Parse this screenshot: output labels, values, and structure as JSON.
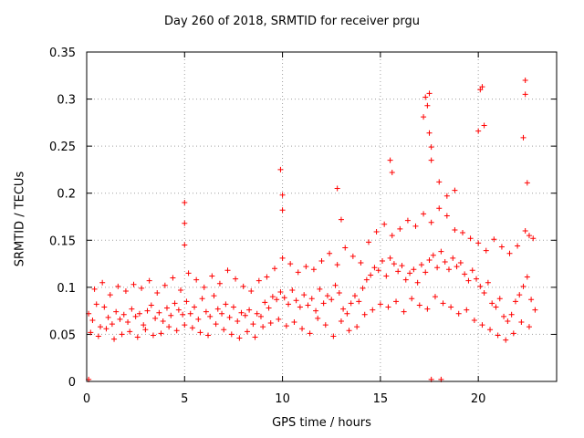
{
  "chart_data": {
    "type": "scatter",
    "title": "Day 260 of 2018, SRMTID for receiver prgu",
    "xlabel": "GPS time / hours",
    "ylabel": "SRMTID / TECUs",
    "xlim": [
      0,
      24
    ],
    "ylim": [
      0,
      0.35
    ],
    "xticks": [
      0,
      5,
      10,
      15,
      20
    ],
    "yticks": [
      0,
      0.05,
      0.1,
      0.15,
      0.2,
      0.25,
      0.3,
      0.35
    ],
    "ytick_labels": [
      "0",
      "0.05",
      "0.1",
      "0.15",
      "0.2",
      "0.25",
      "0.3",
      "0.35"
    ],
    "grid": true,
    "marker": "+",
    "color": "#ff0000",
    "series": [
      {
        "name": "SRMTID",
        "x": [
          0.1,
          0.3,
          0.5,
          0.7,
          0.9,
          1.1,
          1.3,
          1.5,
          1.7,
          1.9,
          2.1,
          2.3,
          2.5,
          2.7,
          2.9,
          3.1,
          3.3,
          3.5,
          3.7,
          3.9,
          4.1,
          4.3,
          4.5,
          4.7,
          4.9,
          5.1,
          5.3,
          5.5,
          5.7,
          5.9,
          6.1,
          6.3,
          6.5,
          6.7,
          6.9,
          7.1,
          7.3,
          7.5,
          7.7,
          7.9,
          8.1,
          8.3,
          8.5,
          8.7,
          8.9,
          9.1,
          9.3,
          9.5,
          9.7,
          9.9,
          10.1,
          10.3,
          10.5,
          10.7,
          10.9,
          11.1,
          11.3,
          11.5,
          11.7,
          11.9,
          12.1,
          12.3,
          12.5,
          12.7,
          12.9,
          13.1,
          13.3,
          13.5,
          13.7,
          13.9,
          14.1,
          14.3,
          14.5,
          14.7,
          14.9,
          15.1,
          15.3,
          15.5,
          15.7,
          15.9,
          16.1,
          16.3,
          16.5,
          16.7,
          16.9,
          17.1,
          17.3,
          17.5,
          17.7,
          17.9,
          18.1,
          18.3,
          18.5,
          18.7,
          18.9,
          19.1,
          19.3,
          19.5,
          19.7,
          19.9,
          20.1,
          20.3,
          20.5,
          20.7,
          20.9,
          21.1,
          21.3,
          21.5,
          21.7,
          21.9,
          22.1,
          22.3,
          22.5,
          22.7,
          22.9,
          0.2,
          0.6,
          1.0,
          1.4,
          1.8,
          2.2,
          2.6,
          3.0,
          3.4,
          3.8,
          4.2,
          4.6,
          5.0,
          5.4,
          5.8,
          6.2,
          6.6,
          7.0,
          7.4,
          7.8,
          8.2,
          8.6,
          9.0,
          9.4,
          9.8,
          10.2,
          10.6,
          11.0,
          11.4,
          11.8,
          12.2,
          12.6,
          13.0,
          13.4,
          13.8,
          14.2,
          14.6,
          15.0,
          15.4,
          15.8,
          16.2,
          16.6,
          17.0,
          17.4,
          17.8,
          18.2,
          18.6,
          19.0,
          19.4,
          19.8,
          20.2,
          20.6,
          21.0,
          21.4,
          21.8,
          22.2,
          22.6,
          0.4,
          0.8,
          1.2,
          1.6,
          2.0,
          2.4,
          2.8,
          3.2,
          3.6,
          4.0,
          4.4,
          4.8,
          5.2,
          5.6,
          6.0,
          6.4,
          6.8,
          7.2,
          7.6,
          8.0,
          8.4,
          8.8,
          9.2,
          9.6,
          10.0,
          10.4,
          10.8,
          11.2,
          11.6,
          12.0,
          12.4,
          12.8,
          13.2,
          13.6,
          14.0,
          14.4,
          14.8,
          15.2,
          15.6,
          16.0,
          16.4,
          16.8,
          17.2,
          17.6,
          18.0,
          18.4,
          18.8,
          19.2,
          19.6,
          20.0,
          20.4,
          20.8,
          21.2,
          21.6,
          22.0,
          22.4,
          22.8,
          5.0,
          5.0,
          5.0,
          9.9,
          10.0,
          10.0,
          12.8,
          13.0,
          15.5,
          15.6,
          17.2,
          17.3,
          17.4,
          17.5,
          17.5,
          17.6,
          17.6,
          18.0,
          18.4,
          18.8,
          20.0,
          20.1,
          20.2,
          20.3,
          22.3,
          22.4,
          22.4,
          22.5,
          22.6,
          0.1,
          17.6,
          18.1
        ],
        "y": [
          0.072,
          0.065,
          0.082,
          0.058,
          0.079,
          0.068,
          0.061,
          0.074,
          0.066,
          0.071,
          0.063,
          0.077,
          0.069,
          0.072,
          0.06,
          0.075,
          0.081,
          0.067,
          0.073,
          0.064,
          0.078,
          0.07,
          0.083,
          0.076,
          0.071,
          0.085,
          0.072,
          0.079,
          0.066,
          0.088,
          0.074,
          0.069,
          0.091,
          0.077,
          0.072,
          0.082,
          0.068,
          0.079,
          0.064,
          0.073,
          0.07,
          0.076,
          0.061,
          0.072,
          0.069,
          0.084,
          0.078,
          0.09,
          0.087,
          0.095,
          0.089,
          0.082,
          0.097,
          0.086,
          0.079,
          0.092,
          0.081,
          0.088,
          0.075,
          0.098,
          0.083,
          0.091,
          0.087,
          0.102,
          0.094,
          0.077,
          0.072,
          0.083,
          0.091,
          0.085,
          0.099,
          0.108,
          0.113,
          0.121,
          0.118,
          0.128,
          0.112,
          0.131,
          0.125,
          0.117,
          0.123,
          0.108,
          0.115,
          0.119,
          0.105,
          0.124,
          0.116,
          0.129,
          0.134,
          0.121,
          0.138,
          0.127,
          0.119,
          0.131,
          0.122,
          0.126,
          0.114,
          0.107,
          0.118,
          0.109,
          0.101,
          0.094,
          0.105,
          0.083,
          0.079,
          0.088,
          0.069,
          0.064,
          0.071,
          0.085,
          0.092,
          0.101,
          0.111,
          0.087,
          0.076,
          0.052,
          0.048,
          0.056,
          0.045,
          0.05,
          0.053,
          0.047,
          0.055,
          0.049,
          0.051,
          0.058,
          0.054,
          0.06,
          0.057,
          0.052,
          0.049,
          0.061,
          0.055,
          0.05,
          0.046,
          0.053,
          0.047,
          0.058,
          0.062,
          0.066,
          0.059,
          0.063,
          0.056,
          0.051,
          0.067,
          0.06,
          0.048,
          0.064,
          0.054,
          0.058,
          0.071,
          0.076,
          0.082,
          0.079,
          0.085,
          0.074,
          0.088,
          0.081,
          0.077,
          0.09,
          0.083,
          0.079,
          0.072,
          0.076,
          0.065,
          0.06,
          0.055,
          0.049,
          0.044,
          0.051,
          0.063,
          0.058,
          0.098,
          0.105,
          0.092,
          0.101,
          0.096,
          0.103,
          0.099,
          0.107,
          0.094,
          0.102,
          0.11,
          0.097,
          0.115,
          0.108,
          0.1,
          0.112,
          0.104,
          0.118,
          0.109,
          0.101,
          0.096,
          0.107,
          0.111,
          0.12,
          0.131,
          0.125,
          0.116,
          0.122,
          0.119,
          0.128,
          0.136,
          0.124,
          0.142,
          0.133,
          0.126,
          0.148,
          0.159,
          0.167,
          0.155,
          0.162,
          0.171,
          0.165,
          0.178,
          0.169,
          0.184,
          0.176,
          0.161,
          0.158,
          0.152,
          0.147,
          0.139,
          0.151,
          0.143,
          0.136,
          0.144,
          0.16,
          0.152,
          0.19,
          0.168,
          0.145,
          0.225,
          0.198,
          0.182,
          0.205,
          0.172,
          0.235,
          0.222,
          0.281,
          0.302,
          0.293,
          0.306,
          0.264,
          0.235,
          0.249,
          0.212,
          0.197,
          0.203,
          0.266,
          0.31,
          0.313,
          0.272,
          0.259,
          0.32,
          0.305,
          0.211,
          0.155,
          0.002,
          0.002,
          0.002
        ]
      }
    ]
  }
}
